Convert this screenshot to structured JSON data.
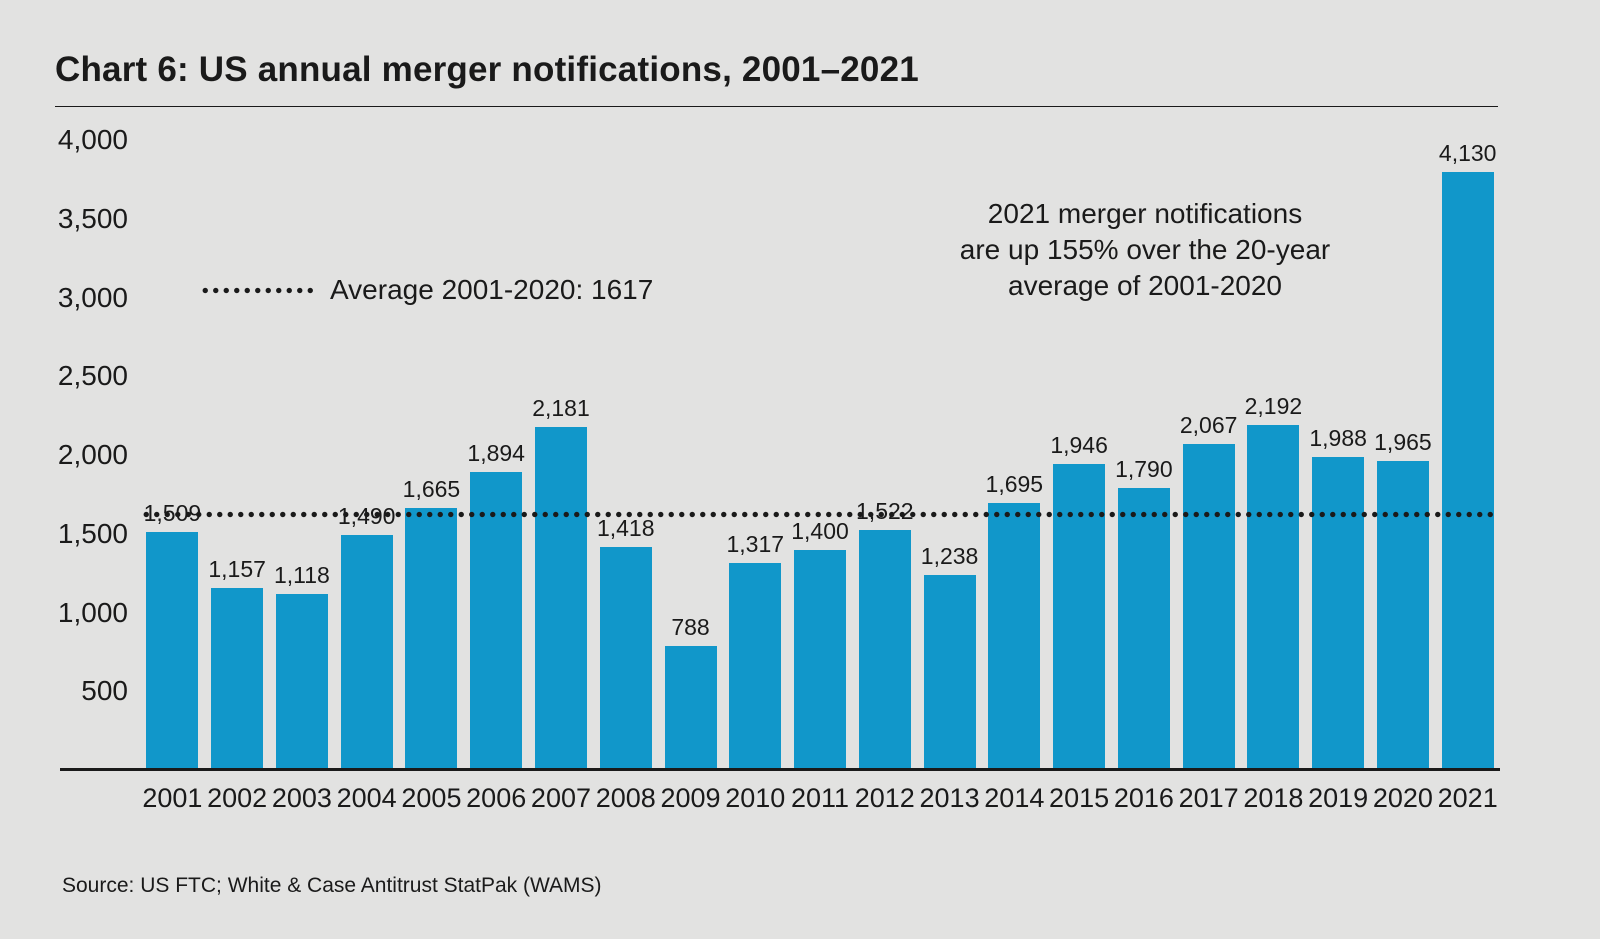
{
  "title": "Chart 6: US annual merger notifications, 2001–2021",
  "source": "Source: US FTC; White & Case Antitrust StatPak (WAMS)",
  "chart_data": {
    "type": "bar",
    "title": "Chart 6: US annual merger notifications, 2001–2021",
    "categories": [
      "2001",
      "2002",
      "2003",
      "2004",
      "2005",
      "2006",
      "2007",
      "2008",
      "2009",
      "2010",
      "2011",
      "2012",
      "2013",
      "2014",
      "2015",
      "2016",
      "2017",
      "2018",
      "2019",
      "2020",
      "2021"
    ],
    "values": [
      1509,
      1157,
      1118,
      1490,
      1665,
      1894,
      2181,
      1418,
      788,
      1317,
      1400,
      1522,
      1238,
      1695,
      1946,
      1790,
      2067,
      2192,
      1988,
      1965,
      4130
    ],
    "bar_labels": [
      "1,509",
      "1,157",
      "1,118",
      "1,490",
      "1,665",
      "1,894",
      "2,181",
      "1,418",
      "788",
      "1,317",
      "1,400",
      "1,522",
      "1,238",
      "1,695",
      "1,946",
      "1,790",
      "2,067",
      "2,192",
      "1,988",
      "1,965",
      "4,130"
    ],
    "xlabel": "",
    "ylabel": "",
    "ylim": [
      0,
      4000
    ],
    "grid": false,
    "legend_position": "none",
    "yticks": [
      {
        "value": 500,
        "label": "500"
      },
      {
        "value": 1000,
        "label": "1,000"
      },
      {
        "value": 1500,
        "label": "1,500"
      },
      {
        "value": 2000,
        "label": "2,000"
      },
      {
        "value": 2500,
        "label": "2,500"
      },
      {
        "value": 3000,
        "label": "3,000"
      },
      {
        "value": 3500,
        "label": "3,500"
      },
      {
        "value": 4000,
        "label": "4,000"
      }
    ],
    "average_line": {
      "value": 1617,
      "label": "Average 2001-2020: 1617"
    },
    "annotation": {
      "lines": [
        "2021 merger notifications",
        "are up 155% over the 20-year",
        "average of 2001-2020"
      ]
    },
    "colors": {
      "bar": "#1197ca",
      "background": "#e2e2e1",
      "text": "#1a1a1a"
    }
  }
}
